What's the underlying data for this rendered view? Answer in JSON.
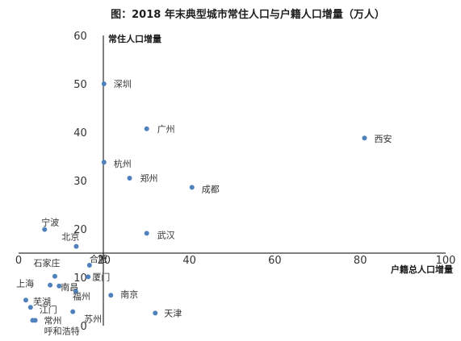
{
  "chart_data": {
    "type": "scatter",
    "title": "图：2018 年末典型城市常住人口与户籍人口增量（万人）",
    "xlabel": "户籍总人口增量",
    "ylabel": "常住人口增量",
    "xlim": [
      0,
      100
    ],
    "ylim": [
      0,
      60
    ],
    "x_ticks": [
      "0",
      "20",
      "40",
      "60",
      "80",
      "100"
    ],
    "y_ticks": [
      "0",
      "10",
      "20",
      "30",
      "40",
      "50",
      "60"
    ],
    "point_color": "#4f81bd",
    "grid": false,
    "legend": "none",
    "points": [
      {
        "label": "深圳",
        "x": 20,
        "y": 50
      },
      {
        "label": "广州",
        "x": 30,
        "y": 40.7
      },
      {
        "label": "西安",
        "x": 81,
        "y": 38.8
      },
      {
        "label": "杭州",
        "x": 20,
        "y": 33.8
      },
      {
        "label": "郑州",
        "x": 26,
        "y": 30.5
      },
      {
        "label": "成都",
        "x": 40.6,
        "y": 28.6
      },
      {
        "label": "宁波",
        "x": 6.1,
        "y": 19.9
      },
      {
        "label": "武汉",
        "x": 30,
        "y": 19.1
      },
      {
        "label": "北京",
        "x": 13.5,
        "y": 16.4
      },
      {
        "label": "合肥",
        "x": 16.6,
        "y": 12.5
      },
      {
        "label": "石家庄",
        "x": 8.5,
        "y": 10.2
      },
      {
        "label": "厦门",
        "x": 16.3,
        "y": 10.1
      },
      {
        "label": "上海",
        "x": 7.4,
        "y": 8.4
      },
      {
        "label": "南昌",
        "x": 9.5,
        "y": 8.2
      },
      {
        "label": "福州",
        "x": 13.4,
        "y": 7.1
      },
      {
        "label": "南京",
        "x": 21.6,
        "y": 6.3
      },
      {
        "label": "芜湖",
        "x": 1.7,
        "y": 5.3
      },
      {
        "label": "江门",
        "x": 2.8,
        "y": 3.8
      },
      {
        "label": "天津",
        "x": 32,
        "y": 2.6
      },
      {
        "label": "苏州",
        "x": 12.7,
        "y": 2.9
      },
      {
        "label": "常州",
        "x": 3.3,
        "y": 1.1
      },
      {
        "label": "呼和浩特",
        "x": 3.9,
        "y": 1.1
      }
    ]
  }
}
